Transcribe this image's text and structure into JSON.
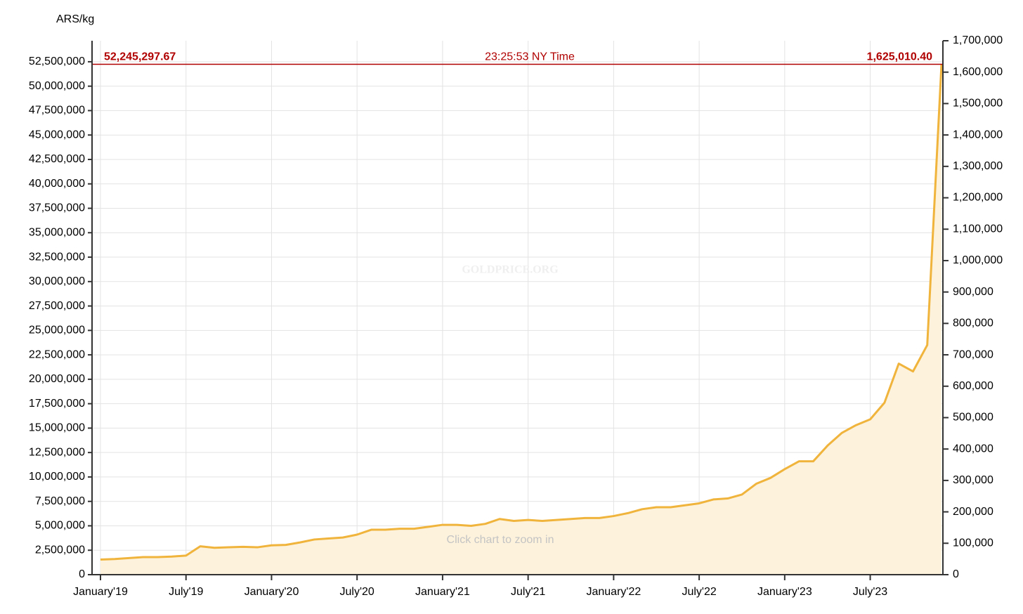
{
  "chart_data": {
    "type": "area",
    "y_label": "ARS/kg",
    "watermark": "GOLDPRICE.ORG",
    "hint": "Click chart to zoom in",
    "annotations": {
      "left": "52,245,297.67",
      "center": "23:25:53 NY Time",
      "right": "1,625,010.40"
    },
    "x": [
      "2019-01",
      "2019-02",
      "2019-03",
      "2019-04",
      "2019-05",
      "2019-06",
      "2019-07",
      "2019-08",
      "2019-09",
      "2019-10",
      "2019-11",
      "2019-12",
      "2020-01",
      "2020-02",
      "2020-03",
      "2020-04",
      "2020-05",
      "2020-06",
      "2020-07",
      "2020-08",
      "2020-09",
      "2020-10",
      "2020-11",
      "2020-12",
      "2021-01",
      "2021-02",
      "2021-03",
      "2021-04",
      "2021-05",
      "2021-06",
      "2021-07",
      "2021-08",
      "2021-09",
      "2021-10",
      "2021-11",
      "2021-12",
      "2022-01",
      "2022-02",
      "2022-03",
      "2022-04",
      "2022-05",
      "2022-06",
      "2022-07",
      "2022-08",
      "2022-09",
      "2022-10",
      "2022-11",
      "2022-12",
      "2023-01",
      "2023-02",
      "2023-03",
      "2023-04",
      "2023-05",
      "2023-06",
      "2023-07",
      "2023-08",
      "2023-09",
      "2023-10",
      "2023-11",
      "2023-12"
    ],
    "series": [
      {
        "name": "ARS/kg",
        "color": "#f0b43c",
        "fill": "#fdf2dc",
        "values": [
          1550000,
          1600000,
          1700000,
          1800000,
          1800000,
          1850000,
          1950000,
          2900000,
          2750000,
          2800000,
          2850000,
          2800000,
          3000000,
          3050000,
          3300000,
          3600000,
          3700000,
          3800000,
          4100000,
          4600000,
          4600000,
          4700000,
          4700000,
          4900000,
          5100000,
          5100000,
          5000000,
          5200000,
          5700000,
          5500000,
          5600000,
          5500000,
          5600000,
          5700000,
          5800000,
          5800000,
          6000000,
          6300000,
          6700000,
          6900000,
          6900000,
          7100000,
          7300000,
          7700000,
          7800000,
          8200000,
          9300000,
          9900000,
          10800000,
          11600000,
          11600000,
          13200000,
          14500000,
          15300000,
          15900000,
          17600000,
          21600000,
          20800000,
          23500000,
          52245297.67
        ]
      }
    ],
    "xlim": [
      "2019-01",
      "2023-12"
    ],
    "xticks": [
      {
        "value": "2019-01",
        "label": "January'19"
      },
      {
        "value": "2019-07",
        "label": "July'19"
      },
      {
        "value": "2020-01",
        "label": "January'20"
      },
      {
        "value": "2020-07",
        "label": "July'20"
      },
      {
        "value": "2021-01",
        "label": "January'21"
      },
      {
        "value": "2021-07",
        "label": "July'21"
      },
      {
        "value": "2022-01",
        "label": "January'22"
      },
      {
        "value": "2022-07",
        "label": "July'22"
      },
      {
        "value": "2023-01",
        "label": "January'23"
      },
      {
        "value": "2023-07",
        "label": "July'23"
      }
    ],
    "ylim": [
      0,
      54650000
    ],
    "yticks": [
      0,
      {
        "value": 2500000,
        "label": "2,500,000"
      },
      {
        "value": 5000000,
        "label": "5,000,000"
      },
      {
        "value": 7500000,
        "label": "7,500,000"
      },
      {
        "value": 10000000,
        "label": "10,000,000"
      },
      {
        "value": 12500000,
        "label": "12,500,000"
      },
      {
        "value": 15000000,
        "label": "15,000,000"
      },
      {
        "value": 17500000,
        "label": "17,500,000"
      },
      {
        "value": 20000000,
        "label": "20,000,000"
      },
      {
        "value": 22500000,
        "label": "22,500,000"
      },
      {
        "value": 25000000,
        "label": "25,000,000"
      },
      {
        "value": 27500000,
        "label": "27,500,000"
      },
      {
        "value": 30000000,
        "label": "30,000,000"
      },
      {
        "value": 32500000,
        "label": "32,500,000"
      },
      {
        "value": 35000000,
        "label": "35,000,000"
      },
      {
        "value": 37500000,
        "label": "37,500,000"
      },
      {
        "value": 40000000,
        "label": "40,000,000"
      },
      {
        "value": 42500000,
        "label": "42,500,000"
      },
      {
        "value": 45000000,
        "label": "45,000,000"
      },
      {
        "value": 47500000,
        "label": "47,500,000"
      },
      {
        "value": 50000000,
        "label": "50,000,000"
      },
      {
        "value": 52500000,
        "label": "52,500,000"
      }
    ],
    "y2lim": [
      0,
      1700000
    ],
    "y2ticks": [
      0,
      {
        "value": 100000,
        "label": "100,000"
      },
      {
        "value": 200000,
        "label": "200,000"
      },
      {
        "value": 300000,
        "label": "300,000"
      },
      {
        "value": 400000,
        "label": "400,000"
      },
      {
        "value": 500000,
        "label": "500,000"
      },
      {
        "value": 600000,
        "label": "600,000"
      },
      {
        "value": 700000,
        "label": "700,000"
      },
      {
        "value": 800000,
        "label": "800,000"
      },
      {
        "value": 900000,
        "label": "900,000"
      },
      {
        "value": 1000000,
        "label": "1,000,000"
      },
      {
        "value": 1100000,
        "label": "1,100,000"
      },
      {
        "value": 1200000,
        "label": "1,200,000"
      },
      {
        "value": 1300000,
        "label": "1,300,000"
      },
      {
        "value": 1400000,
        "label": "1,400,000"
      },
      {
        "value": 1500000,
        "label": "1,500,000"
      },
      {
        "value": 1600000,
        "label": "1,600,000"
      },
      {
        "value": 1700000,
        "label": "1,700,000"
      }
    ],
    "grid": true,
    "marker_color": "#b00000"
  }
}
